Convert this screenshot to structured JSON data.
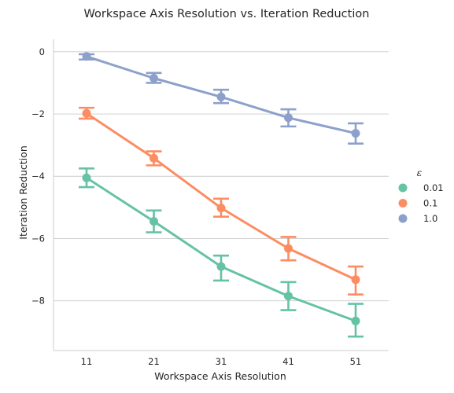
{
  "chart_data": {
    "type": "line",
    "title": "Workspace Axis Resolution vs. Iteration Reduction",
    "xlabel": "Workspace Axis Resolution",
    "ylabel": "Iteration Reduction",
    "categories": [
      "11",
      "21",
      "31",
      "41",
      "51"
    ],
    "ylim": [
      -9.6,
      0.4
    ],
    "yticks": [
      0,
      -2,
      -4,
      -6,
      -8
    ],
    "ytick_labels": [
      "0",
      "−2",
      "−4",
      "−6",
      "−8"
    ],
    "grid": "horizontal",
    "legend": {
      "title": "ε",
      "placement": "right"
    },
    "series": [
      {
        "name": "0.01",
        "color": "#66c2a5",
        "values": [
          -4.05,
          -5.45,
          -6.9,
          -7.85,
          -8.65
        ],
        "ci_low": [
          -4.35,
          -5.8,
          -7.35,
          -8.3,
          -9.15
        ],
        "ci_high": [
          -3.75,
          -5.1,
          -6.55,
          -7.4,
          -8.1
        ]
      },
      {
        "name": "0.1",
        "color": "#fc8d62",
        "values": [
          -1.98,
          -3.42,
          -5.02,
          -6.32,
          -7.32
        ],
        "ci_low": [
          -2.15,
          -3.65,
          -5.3,
          -6.7,
          -7.8
        ],
        "ci_high": [
          -1.8,
          -3.2,
          -4.72,
          -5.95,
          -6.9
        ]
      },
      {
        "name": "1.0",
        "color": "#8da0cb",
        "values": [
          -0.15,
          -0.85,
          -1.45,
          -2.12,
          -2.62
        ],
        "ci_low": [
          -0.25,
          -1.0,
          -1.65,
          -2.4,
          -2.95
        ],
        "ci_high": [
          -0.08,
          -0.68,
          -1.22,
          -1.85,
          -2.3
        ]
      }
    ]
  }
}
